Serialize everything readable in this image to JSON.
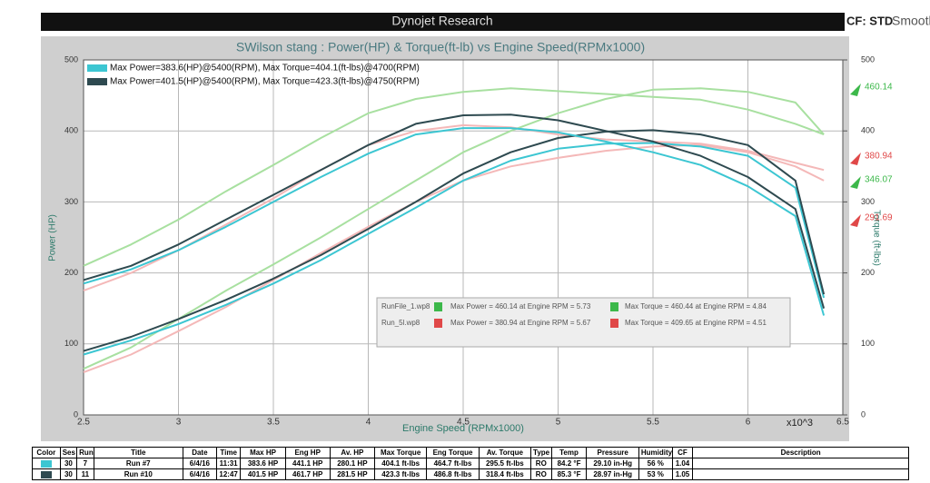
{
  "header": {
    "title": "Dynojet Research",
    "cf": "CF: STD",
    "smoothing": "Smooth"
  },
  "chart_data": {
    "type": "line",
    "title": "SWilson stang : Power(HP) & Torque(ft-lb) vs Engine Speed(RPMx1000)",
    "x_label": "Engine Speed (RPMx1000)",
    "x_multiplier": "x10^3",
    "y_label": "Power (HP)",
    "y2_label": "Torque (ft-lbs)",
    "x": [
      2.5,
      2.75,
      3,
      3.25,
      3.5,
      3.75,
      4,
      4.25,
      4.5,
      4.75,
      5,
      5.25,
      5.5,
      5.75,
      6,
      6.25,
      6.4
    ],
    "xlim": [
      2.5,
      6.5
    ],
    "xticks": [
      2.5,
      3,
      3.5,
      4,
      4.5,
      5,
      5.5,
      6,
      6.5
    ],
    "ylim": [
      0,
      500
    ],
    "yticks": [
      0,
      100,
      200,
      300,
      400,
      500
    ],
    "y2lim": [
      0,
      500
    ],
    "y2ticks": [
      0,
      100,
      200,
      300,
      400,
      500
    ],
    "grid": true,
    "legend": [
      {
        "text": "Max Power=383.6(HP)@5400(RPM), Max Torque=404.1(ft-lbs)@4700(RPM)",
        "color": "#3cc6d2"
      },
      {
        "text": "Max Power=401.5(HP)@5400(RPM), Max Torque=423.3(ft-lbs)@4750(RPM)",
        "color": "#2e4a50"
      }
    ],
    "series": [
      {
        "color": "#f4b8b8",
        "values": [
          60,
          85,
          118,
          152,
          190,
          228,
          265,
          300,
          330,
          350,
          362,
          372,
          378,
          380,
          370,
          350,
          330
        ]
      },
      {
        "color": "#f4b8b8",
        "axis": "y2",
        "values": [
          175,
          200,
          232,
          268,
          305,
          345,
          380,
          400,
          408,
          405,
          395,
          388,
          385,
          382,
          372,
          355,
          345
        ],
        "dash": true
      },
      {
        "color": "#a8e0a0",
        "values": [
          65,
          95,
          135,
          175,
          212,
          250,
          290,
          330,
          370,
          400,
          425,
          445,
          458,
          460,
          455,
          440,
          395
        ]
      },
      {
        "color": "#a8e0a0",
        "axis": "y2",
        "values": [
          210,
          240,
          275,
          315,
          352,
          390,
          425,
          445,
          455,
          460,
          456,
          452,
          448,
          444,
          430,
          410,
          395
        ]
      },
      {
        "color": "#3cc6d2",
        "values": [
          85,
          105,
          128,
          155,
          185,
          218,
          255,
          292,
          330,
          358,
          375,
          382,
          383,
          378,
          365,
          320,
          165
        ]
      },
      {
        "color": "#2e4a50",
        "values": [
          90,
          110,
          135,
          162,
          192,
          225,
          262,
          300,
          340,
          370,
          390,
          399,
          401,
          395,
          380,
          330,
          170
        ]
      },
      {
        "color": "#3cc6d2",
        "axis": "y2",
        "values": [
          185,
          205,
          232,
          265,
          300,
          335,
          368,
          395,
          404,
          404,
          398,
          385,
          370,
          352,
          322,
          280,
          140
        ]
      },
      {
        "color": "#2e4a50",
        "axis": "y2",
        "values": [
          190,
          210,
          240,
          275,
          310,
          345,
          380,
          410,
          422,
          423,
          415,
          400,
          385,
          365,
          335,
          290,
          150
        ]
      }
    ],
    "overlay": [
      {
        "file": "RunFile_1.wp8",
        "power": "Max Power = 460.14 at Engine RPM = 5.73",
        "torque": "Max Torque = 460.44 at Engine RPM = 4.84",
        "color": "#3cb84a"
      },
      {
        "file": "Run_5l.wp8",
        "power": "Max Power = 380.94 at Engine RPM = 5.67",
        "torque": "Max Torque = 409.65 at Engine RPM = 4.51",
        "color": "#e04848"
      }
    ],
    "annotations": [
      {
        "text": "460.14",
        "color": "#3cb84a"
      },
      {
        "text": "380.94",
        "color": "#e04848"
      },
      {
        "text": "346.07",
        "color": "#3cb84a"
      },
      {
        "text": "291.69",
        "color": "#e04848"
      }
    ]
  },
  "table": {
    "header": [
      "Color",
      "Ses",
      "Run",
      "Title",
      "Date",
      "Time",
      "Max HP",
      "Eng HP",
      "Av. HP",
      "Max Torque",
      "Eng Torque",
      "Av. Torque",
      "Type",
      "Temp",
      "Pressure",
      "Humidity",
      "CF",
      "Description"
    ],
    "rows": [
      {
        "color": "#3cc6d2",
        "cells": [
          "30",
          "7",
          "Run #7",
          "6/4/16",
          "11:31",
          "383.6 HP",
          "441.1 HP",
          "280.1 HP",
          "404.1 ft-lbs",
          "464.7 ft-lbs",
          "295.5 ft-lbs",
          "RO",
          "84.2 °F",
          "29.10 in-Hg",
          "56 %",
          "1.04"
        ]
      },
      {
        "color": "#2e4a50",
        "cells": [
          "30",
          "11",
          "Run #10",
          "6/4/16",
          "12:47",
          "401.5 HP",
          "461.7 HP",
          "281.5 HP",
          "423.3 ft-lbs",
          "486.8 ft-lbs",
          "318.4 ft-lbs",
          "RO",
          "85.3 °F",
          "28.97 in-Hg",
          "53 %",
          "1.05"
        ]
      }
    ]
  }
}
